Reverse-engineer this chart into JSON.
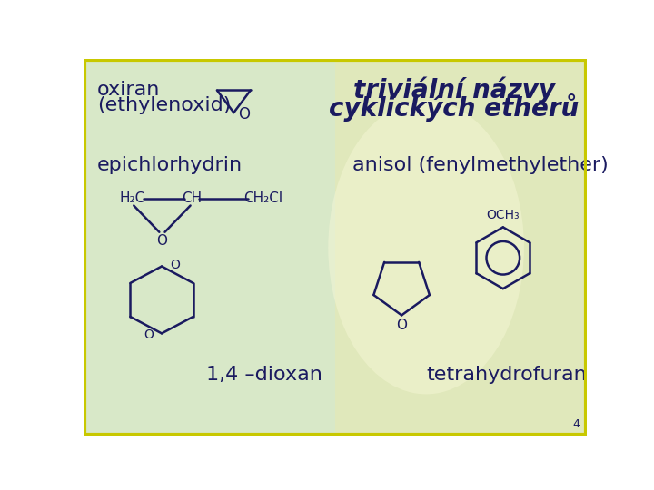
{
  "bg_color": "#d8e8c8",
  "bg_color_right": "#e8e8b0",
  "border_color": "#c8c800",
  "title_text1": "triviální názvy",
  "title_text2": "cyklických etherů",
  "title_fontsize": 20,
  "label_oxiran1": "oxiran",
  "label_oxiran2": "(ethylenoxid)",
  "label_epich": "epichlorhydrin",
  "label_dioxan": "1,4 –dioxan",
  "label_anisol": "anisol (fenylmethylether)",
  "label_thf": "tetrahydrofuran",
  "label_fontsize": 16,
  "page_number": "4",
  "dark_color": "#1a1a60",
  "struct_color": "#1a1a60"
}
